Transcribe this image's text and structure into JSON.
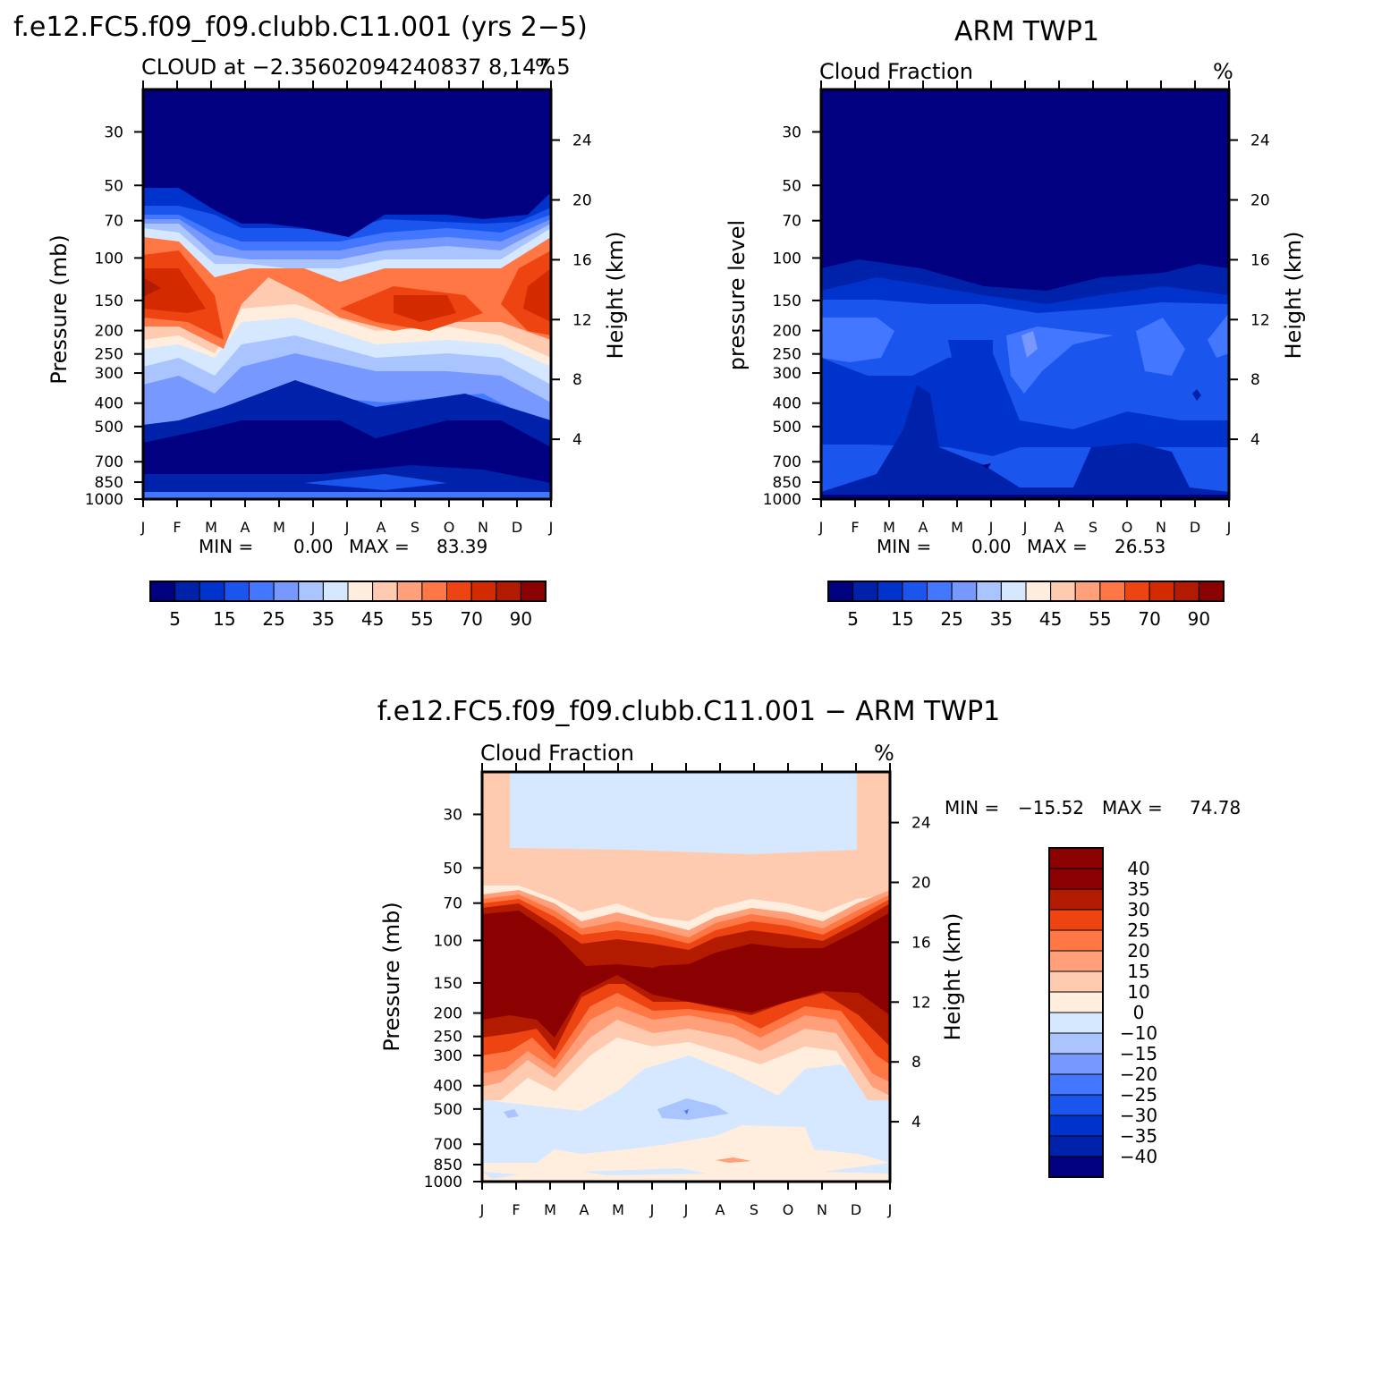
{
  "chart_data": [
    {
      "type": "heatmap",
      "suptitle": "f.e12.FC5.f09_f09.clubb.C11.001 (yrs 2−5)",
      "title": "CLOUD at −2.35602094240837 8,147.5",
      "units": "%",
      "xlabel": "",
      "ylabel": "Pressure (mb)",
      "ylabel_right": "Height (km)",
      "x_ticks": [
        "J",
        "F",
        "M",
        "A",
        "M",
        "J",
        "J",
        "A",
        "S",
        "O",
        "N",
        "D",
        "J"
      ],
      "y_ticks": [
        "30",
        "50",
        "70",
        "100",
        "150",
        "200",
        "250",
        "300",
        "400",
        "500",
        "700",
        "850",
        "1000"
      ],
      "y_ticks_right": [
        "24",
        "20",
        "16",
        "12",
        "8",
        "4"
      ],
      "min_label": "MIN =",
      "min_value": "0.00",
      "max_label": "MAX =",
      "max_value": "83.39",
      "colorbar_labels": [
        "5",
        "15",
        "25",
        "35",
        "45",
        "55",
        "70",
        "90"
      ],
      "colorbar_orientation": "horizontal"
    },
    {
      "type": "heatmap",
      "suptitle": "ARM TWP1",
      "title": "Cloud Fraction",
      "units": "%",
      "xlabel": "",
      "ylabel": "pressure level",
      "ylabel_right": "Height (km)",
      "x_ticks": [
        "J",
        "F",
        "M",
        "A",
        "M",
        "J",
        "J",
        "A",
        "S",
        "O",
        "N",
        "D",
        "J"
      ],
      "y_ticks": [
        "30",
        "50",
        "70",
        "100",
        "150",
        "200",
        "250",
        "300",
        "400",
        "500",
        "700",
        "850",
        "1000"
      ],
      "y_ticks_right": [
        "24",
        "20",
        "16",
        "12",
        "8",
        "4"
      ],
      "min_label": "MIN =",
      "min_value": "0.00",
      "max_label": "MAX =",
      "max_value": "26.53",
      "colorbar_labels": [
        "5",
        "15",
        "25",
        "35",
        "45",
        "55",
        "70",
        "90"
      ],
      "colorbar_orientation": "horizontal"
    },
    {
      "type": "heatmap",
      "suptitle": "f.e12.FC5.f09_f09.clubb.C11.001 − ARM TWP1",
      "title": "Cloud Fraction",
      "units": "%",
      "xlabel": "",
      "ylabel": "Pressure (mb)",
      "ylabel_right": "Height (km)",
      "x_ticks": [
        "J",
        "F",
        "M",
        "A",
        "M",
        "J",
        "J",
        "A",
        "S",
        "O",
        "N",
        "D",
        "J"
      ],
      "y_ticks": [
        "30",
        "50",
        "70",
        "100",
        "150",
        "200",
        "250",
        "300",
        "400",
        "500",
        "700",
        "850",
        "1000"
      ],
      "y_ticks_right": [
        "24",
        "20",
        "16",
        "12",
        "8",
        "4"
      ],
      "min_label": "MIN =",
      "min_value": "−15.52",
      "max_label": "MAX =",
      "max_value": "74.78",
      "colorbar_labels": [
        "40",
        "35",
        "30",
        "25",
        "20",
        "15",
        "10",
        "0",
        "−10",
        "−15",
        "−20",
        "−25",
        "−30",
        "−35",
        "−40"
      ],
      "colorbar_orientation": "vertical"
    }
  ],
  "colors": {
    "seq": [
      "#000080",
      "#0022aa",
      "#0033cc",
      "#1a55ee",
      "#4477ff",
      "#7799ff",
      "#aac4ff",
      "#d6e8ff",
      "#ffeedd",
      "#ffcbb0",
      "#ffa07a",
      "#ff7744",
      "#ee4411",
      "#d42a00",
      "#b31b00",
      "#8b0000"
    ],
    "div": [
      "#8b0000",
      "#b31b00",
      "#ee4411",
      "#ff7744",
      "#ffa07a",
      "#ffcbb0",
      "#ffeedd",
      "#d6e8ff",
      "#aac4ff",
      "#7799ff",
      "#4477ff",
      "#1a55ee",
      "#0033cc",
      "#0022aa",
      "#000080"
    ]
  }
}
